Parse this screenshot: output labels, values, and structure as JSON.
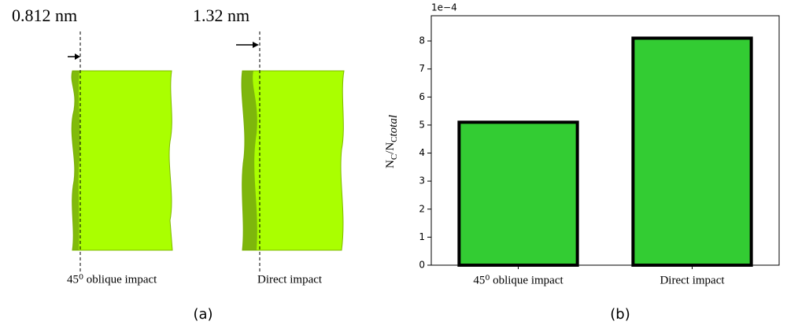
{
  "panel_a": {
    "measurements": [
      "0.812 nm",
      "1.32 nm"
    ],
    "labels": [
      "45⁰ oblique impact",
      "Direct impact"
    ],
    "caption": "(a)"
  },
  "chart_data": {
    "type": "bar",
    "categories": [
      "45⁰ oblique impact",
      "Direct impact"
    ],
    "values": [
      5.1,
      8.1
    ],
    "color": "#33cc33",
    "edge_color": "#000000",
    "ylim": [
      0,
      8.9
    ],
    "yticks": [
      0,
      1,
      2,
      3,
      4,
      5,
      6,
      7,
      8
    ],
    "offset_text": "1e−4",
    "ylabel": [
      "N",
      "C",
      "/N",
      "C",
      "total"
    ],
    "caption": "(b)"
  }
}
